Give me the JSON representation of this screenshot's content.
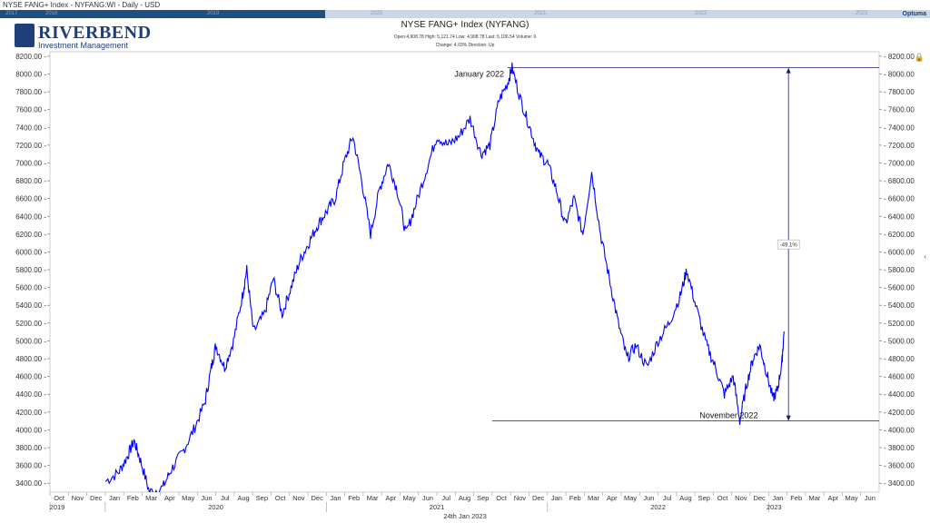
{
  "window_title": "NYSE FANG+ Index - NYFANG:WI - Daily - USD",
  "navigator": {
    "years": [
      "2017",
      "2018",
      "2019",
      "2020",
      "2021",
      "2022",
      "2023"
    ],
    "brand": "Optuma"
  },
  "logo": {
    "name": "RIVERBEND",
    "tagline": "Investment Management"
  },
  "info": {
    "line1": "Open:4,908.78   High: 5,121.74   Low: 4,908.78   Last: 5,106.54   Volume: 0",
    "line2": "Change: 4.03%   Direction: Up"
  },
  "colors": {
    "price_line": "#0000ff",
    "annotation": "#1a1a7a",
    "grid": "#e8e8e8"
  },
  "chart_data": {
    "type": "line",
    "title": "NYSE FANG+ Index (NYFANG)",
    "ylim": [
      3300,
      8250
    ],
    "y_ticks": [
      "3400.00",
      "3600.00",
      "3800.00",
      "4000.00",
      "4200.00",
      "4400.00",
      "4600.00",
      "4800.00",
      "5000.00",
      "5200.00",
      "5400.00",
      "5600.00",
      "5800.00",
      "6000.00",
      "6200.00",
      "6400.00",
      "6600.00",
      "6800.00",
      "7000.00",
      "7200.00",
      "7400.00",
      "7600.00",
      "7800.00",
      "8000.00",
      "8200.00"
    ],
    "x_months": [
      "Oct",
      "Nov",
      "Dec",
      "Jan",
      "Feb",
      "Mar",
      "Apr",
      "May",
      "Jun",
      "Jul",
      "Aug",
      "Sep",
      "Oct",
      "Nov",
      "Dec",
      "Jan",
      "Feb",
      "Mar",
      "Apr",
      "May",
      "Jun",
      "Jul",
      "Aug",
      "Sep",
      "Oct",
      "Nov",
      "Dec",
      "Jan",
      "Feb",
      "Mar",
      "Apr",
      "May",
      "Jun",
      "Jul",
      "Aug",
      "Sep",
      "Oct",
      "Nov",
      "Dec",
      "Jan",
      "Feb",
      "Mar",
      "Apr",
      "May",
      "Jun"
    ],
    "x_years": [
      "2019",
      "2020",
      "2021",
      "2022",
      "2023"
    ],
    "date_label": "24th Jan 2023",
    "series": [
      {
        "values": [
          [
            2020.0,
            3420
          ],
          [
            2020.06,
            3520
          ],
          [
            2020.1,
            3700
          ],
          [
            2020.13,
            3880
          ],
          [
            2020.16,
            3650
          ],
          [
            2020.2,
            3300
          ],
          [
            2020.26,
            3350
          ],
          [
            2020.3,
            3560
          ],
          [
            2020.35,
            3750
          ],
          [
            2020.4,
            4000
          ],
          [
            2020.45,
            4300
          ],
          [
            2020.48,
            4700
          ],
          [
            2020.5,
            4950
          ],
          [
            2020.54,
            4700
          ],
          [
            2020.58,
            5000
          ],
          [
            2020.62,
            5500
          ],
          [
            2020.64,
            5800
          ],
          [
            2020.67,
            5100
          ],
          [
            2020.72,
            5300
          ],
          [
            2020.76,
            5700
          ],
          [
            2020.8,
            5300
          ],
          [
            2020.84,
            5600
          ],
          [
            2020.88,
            5900
          ],
          [
            2020.92,
            6100
          ],
          [
            2020.96,
            6300
          ],
          [
            2021.0,
            6450
          ],
          [
            2021.04,
            6600
          ],
          [
            2021.08,
            7000
          ],
          [
            2021.12,
            7300
          ],
          [
            2021.16,
            6800
          ],
          [
            2021.2,
            6200
          ],
          [
            2021.24,
            6700
          ],
          [
            2021.28,
            7000
          ],
          [
            2021.32,
            6700
          ],
          [
            2021.36,
            6200
          ],
          [
            2021.4,
            6500
          ],
          [
            2021.45,
            6900
          ],
          [
            2021.5,
            7300
          ],
          [
            2021.55,
            7200
          ],
          [
            2021.6,
            7300
          ],
          [
            2021.65,
            7500
          ],
          [
            2021.7,
            7100
          ],
          [
            2021.74,
            7200
          ],
          [
            2021.78,
            7700
          ],
          [
            2021.82,
            7900
          ],
          [
            2021.84,
            8070
          ],
          [
            2021.88,
            7700
          ],
          [
            2021.92,
            7400
          ],
          [
            2021.96,
            7100
          ],
          [
            2022.0,
            7000
          ],
          [
            2022.04,
            6700
          ],
          [
            2022.08,
            6300
          ],
          [
            2022.12,
            6600
          ],
          [
            2022.16,
            6200
          ],
          [
            2022.2,
            6900
          ],
          [
            2022.24,
            6200
          ],
          [
            2022.28,
            5700
          ],
          [
            2022.32,
            5200
          ],
          [
            2022.36,
            4800
          ],
          [
            2022.4,
            4950
          ],
          [
            2022.45,
            4700
          ],
          [
            2022.5,
            5000
          ],
          [
            2022.55,
            5200
          ],
          [
            2022.6,
            5500
          ],
          [
            2022.63,
            5800
          ],
          [
            2022.67,
            5400
          ],
          [
            2022.72,
            4950
          ],
          [
            2022.76,
            4700
          ],
          [
            2022.8,
            4400
          ],
          [
            2022.84,
            4600
          ],
          [
            2022.87,
            4100
          ],
          [
            2022.9,
            4500
          ],
          [
            2022.93,
            4800
          ],
          [
            2022.96,
            4950
          ],
          [
            2022.99,
            4650
          ],
          [
            2023.02,
            4350
          ],
          [
            2023.04,
            4450
          ],
          [
            2023.06,
            4750
          ],
          [
            2023.07,
            5106
          ]
        ]
      }
    ],
    "annotations": [
      {
        "label": "January 2022",
        "value": 8070
      },
      {
        "label": "November 2022",
        "value": 4100
      },
      {
        "label": "-49.1%"
      }
    ]
  }
}
